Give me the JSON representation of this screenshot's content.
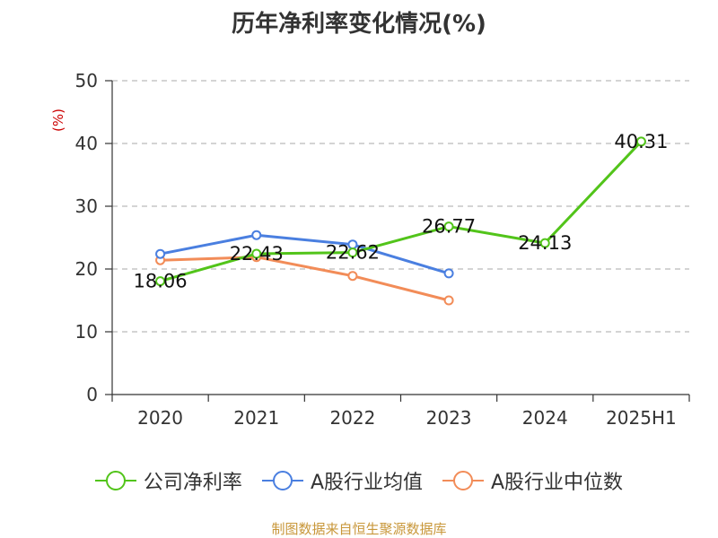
{
  "chart_data": {
    "type": "line",
    "title": "历年净利率变化情况(%)",
    "ylabel": "(%)",
    "xlabel": "",
    "categories": [
      "2020",
      "2021",
      "2022",
      "2023",
      "2024",
      "2025H1"
    ],
    "ylim": [
      0,
      50
    ],
    "yticks": [
      0,
      10,
      20,
      30,
      40,
      50
    ],
    "grid": true,
    "legend_position": "bottom",
    "series": [
      {
        "name": "公司净利率",
        "color": "#52c41a",
        "values": [
          18.06,
          22.43,
          22.62,
          26.77,
          24.13,
          40.31
        ],
        "labels": [
          "18.06",
          "22.43",
          "22.62",
          "26.77",
          "24.13",
          "40.31"
        ]
      },
      {
        "name": "A股行业均值",
        "color": "#4a7fe0",
        "values": [
          22.4,
          25.4,
          23.9,
          19.3,
          null,
          null
        ]
      },
      {
        "name": "A股行业中位数",
        "color": "#f28c58",
        "values": [
          21.4,
          21.9,
          18.9,
          15.0,
          null,
          null
        ]
      }
    ],
    "source": "制图数据来自恒生聚源数据库"
  }
}
